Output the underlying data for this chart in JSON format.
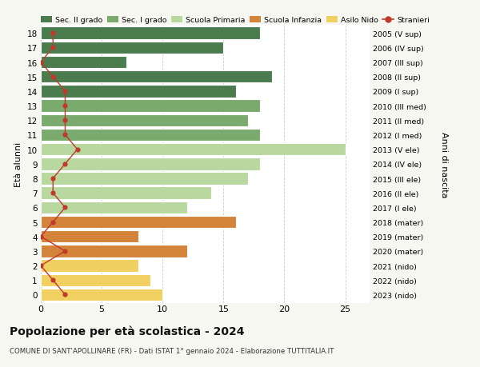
{
  "ages": [
    18,
    17,
    16,
    15,
    14,
    13,
    12,
    11,
    10,
    9,
    8,
    7,
    6,
    5,
    4,
    3,
    2,
    1,
    0
  ],
  "labels_right": [
    "2005 (V sup)",
    "2006 (IV sup)",
    "2007 (III sup)",
    "2008 (II sup)",
    "2009 (I sup)",
    "2010 (III med)",
    "2011 (II med)",
    "2012 (I med)",
    "2013 (V ele)",
    "2014 (IV ele)",
    "2015 (III ele)",
    "2016 (II ele)",
    "2017 (I ele)",
    "2018 (mater)",
    "2019 (mater)",
    "2020 (mater)",
    "2021 (nido)",
    "2022 (nido)",
    "2023 (nido)"
  ],
  "bar_values": [
    18,
    15,
    7,
    19,
    16,
    18,
    17,
    18,
    25,
    18,
    17,
    14,
    12,
    16,
    8,
    12,
    8,
    9,
    10
  ],
  "bar_colors": [
    "#4a7c4e",
    "#4a7c4e",
    "#4a7c4e",
    "#4a7c4e",
    "#4a7c4e",
    "#7aaa6e",
    "#7aaa6e",
    "#7aaa6e",
    "#b8d8a0",
    "#b8d8a0",
    "#b8d8a0",
    "#b8d8a0",
    "#b8d8a0",
    "#d4843a",
    "#d4843a",
    "#d4843a",
    "#f0d060",
    "#f0d060",
    "#f0d060"
  ],
  "stranieri_values": [
    1,
    1,
    0,
    1,
    2,
    2,
    2,
    2,
    3,
    2,
    1,
    1,
    2,
    1,
    0,
    2,
    0,
    1,
    2
  ],
  "legend_labels": [
    "Sec. II grado",
    "Sec. I grado",
    "Scuola Primaria",
    "Scuola Infanzia",
    "Asilo Nido",
    "Stranieri"
  ],
  "legend_colors": [
    "#4a7c4e",
    "#7aaa6e",
    "#b8d8a0",
    "#d4843a",
    "#f0d060",
    "#c0392b"
  ],
  "title": "Popolazione per età scolastica - 2024",
  "subtitle": "COMUNE DI SANT'APOLLINARE (FR) - Dati ISTAT 1° gennaio 2024 - Elaborazione TUTTITALIA.IT",
  "ylabel": "Età alunni",
  "ylabel_right": "Anni di nascita",
  "xlim": [
    0,
    27
  ],
  "xticks": [
    0,
    5,
    10,
    15,
    20,
    25
  ],
  "background_color": "#f7f7f2",
  "chart_bg": "#ffffff",
  "grid_color": "#cccccc"
}
